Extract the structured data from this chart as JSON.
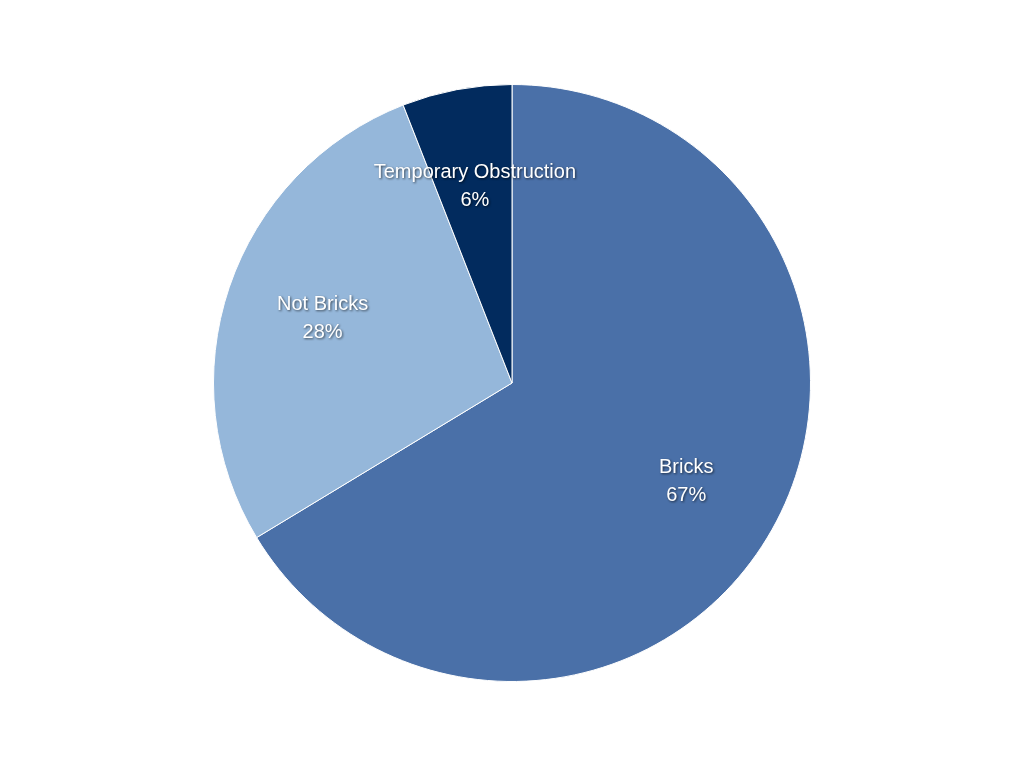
{
  "chart_data": {
    "type": "pie",
    "categories": [
      "Bricks",
      "Not Bricks",
      "Temporary Obstruction"
    ],
    "values": [
      67,
      28,
      6
    ],
    "colors": [
      "#4a70a8",
      "#95b7da",
      "#022b5e"
    ],
    "value_labels": [
      "67%",
      "28%",
      "6%"
    ],
    "legend": false
  }
}
